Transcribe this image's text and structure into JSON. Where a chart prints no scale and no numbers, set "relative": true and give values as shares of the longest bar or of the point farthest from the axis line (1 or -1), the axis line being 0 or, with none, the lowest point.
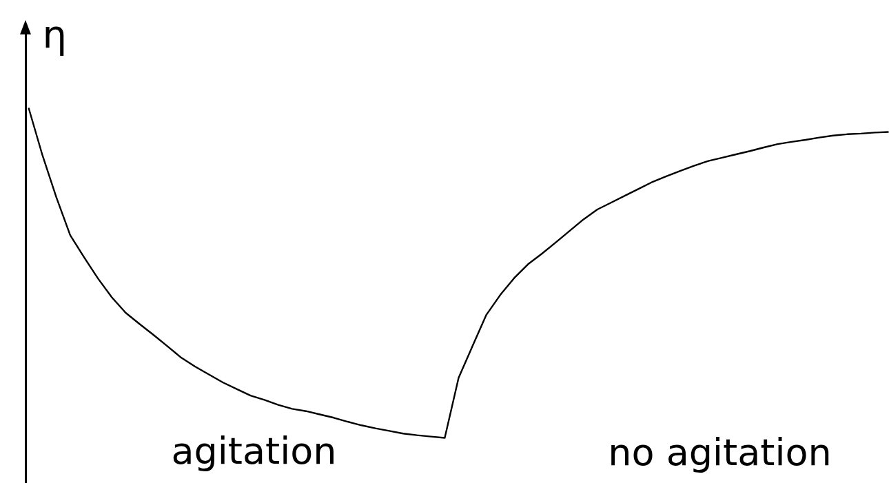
{
  "chart_data": {
    "type": "line",
    "relative": true,
    "ylabel": "η",
    "annotations": [
      "agitation",
      "no agitation"
    ],
    "color": "#000000",
    "line_style": "solid",
    "categories": [
      null,
      null,
      null,
      null,
      null,
      null,
      null,
      null,
      null,
      null,
      null,
      null,
      null,
      null,
      null,
      null,
      null,
      null,
      null,
      null,
      null,
      null,
      null,
      null,
      null,
      null,
      null,
      null,
      null,
      null,
      null,
      null,
      null,
      null,
      null,
      null,
      null,
      null,
      null,
      null,
      null,
      null,
      null,
      null,
      null,
      null,
      null,
      null,
      null,
      null,
      null,
      null,
      null,
      null,
      null,
      null,
      null,
      null,
      null,
      null,
      null,
      null,
      null
    ],
    "values": [
      1,
      0.856,
      0.729,
      0.614,
      0.547,
      0.483,
      0.426,
      0.379,
      0.345,
      0.312,
      0.278,
      0.243,
      0.216,
      0.192,
      0.168,
      0.148,
      0.128,
      0.115,
      0.1,
      0.088,
      0.081,
      0.071,
      0.061,
      0.049,
      0.038,
      0.029,
      0.021,
      0.013,
      0.008,
      0.004,
      0,
      0.182,
      0.278,
      0.373,
      0.433,
      0.484,
      0.526,
      0.558,
      0.592,
      0.627,
      0.662,
      0.692,
      0.713,
      0.734,
      0.755,
      0.776,
      0.793,
      0.809,
      0.825,
      0.839,
      0.849,
      0.859,
      0.869,
      0.88,
      0.89,
      0.897,
      0.903,
      0.91,
      0.916,
      0.92,
      0.922,
      0.925,
      0.927
    ]
  }
}
